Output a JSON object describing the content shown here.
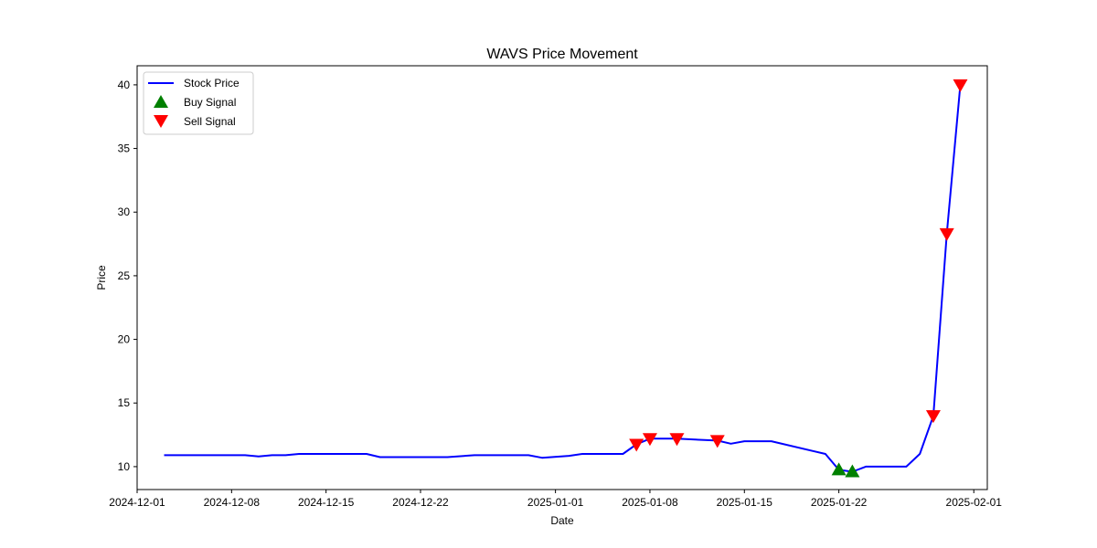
{
  "chart_data": {
    "type": "line",
    "title": "WAVS Price Movement",
    "xlabel": "Date",
    "ylabel": "Price",
    "xlim": [
      "2024-12-01",
      "2025-02-02"
    ],
    "ylim": [
      8.2,
      41.5
    ],
    "grid": false,
    "legend_position": "top-left",
    "x_ticks": [
      "2024-12-01",
      "2024-12-08",
      "2024-12-15",
      "2024-12-22",
      "2025-01-01",
      "2025-01-08",
      "2025-01-15",
      "2025-01-22",
      "2025-02-01"
    ],
    "y_ticks": [
      10,
      15,
      20,
      25,
      30,
      35,
      40
    ],
    "series": [
      {
        "name": "Stock Price",
        "color": "#0000ff",
        "points": [
          [
            "2024-12-03",
            10.9
          ],
          [
            "2024-12-04",
            10.9
          ],
          [
            "2024-12-05",
            10.9
          ],
          [
            "2024-12-06",
            10.9
          ],
          [
            "2024-12-09",
            10.9
          ],
          [
            "2024-12-10",
            10.8
          ],
          [
            "2024-12-11",
            10.9
          ],
          [
            "2024-12-12",
            10.9
          ],
          [
            "2024-12-13",
            11.0
          ],
          [
            "2024-12-16",
            11.0
          ],
          [
            "2024-12-17",
            11.0
          ],
          [
            "2024-12-18",
            11.0
          ],
          [
            "2024-12-19",
            10.75
          ],
          [
            "2024-12-20",
            10.75
          ],
          [
            "2024-12-23",
            10.75
          ],
          [
            "2024-12-24",
            10.75
          ],
          [
            "2024-12-26",
            10.9
          ],
          [
            "2024-12-27",
            10.9
          ],
          [
            "2024-12-30",
            10.9
          ],
          [
            "2024-12-31",
            10.7
          ],
          [
            "2025-01-02",
            10.85
          ],
          [
            "2025-01-03",
            11.0
          ],
          [
            "2025-01-06",
            11.0
          ],
          [
            "2025-01-07",
            11.75
          ],
          [
            "2025-01-08",
            12.2
          ],
          [
            "2025-01-10",
            12.2
          ],
          [
            "2025-01-13",
            12.05
          ],
          [
            "2025-01-14",
            11.8
          ],
          [
            "2025-01-15",
            12.0
          ],
          [
            "2025-01-17",
            12.0
          ],
          [
            "2025-01-21",
            11.0
          ],
          [
            "2025-01-22",
            9.75
          ],
          [
            "2025-01-23",
            9.6
          ],
          [
            "2025-01-24",
            10.0
          ],
          [
            "2025-01-27",
            10.0
          ],
          [
            "2025-01-28",
            11.0
          ],
          [
            "2025-01-29",
            14.0
          ],
          [
            "2025-01-30",
            28.3
          ],
          [
            "2025-01-31",
            40.0
          ]
        ]
      }
    ],
    "buy_signals": {
      "name": "Buy Signal",
      "color": "#008000",
      "points": [
        [
          "2025-01-22",
          9.75
        ],
        [
          "2025-01-23",
          9.6
        ]
      ]
    },
    "sell_signals": {
      "name": "Sell Signal",
      "color": "#ff0000",
      "points": [
        [
          "2025-01-07",
          11.75
        ],
        [
          "2025-01-08",
          12.2
        ],
        [
          "2025-01-10",
          12.2
        ],
        [
          "2025-01-13",
          12.05
        ],
        [
          "2025-01-29",
          14.0
        ],
        [
          "2025-01-30",
          28.3
        ],
        [
          "2025-01-31",
          40.0
        ]
      ]
    }
  }
}
